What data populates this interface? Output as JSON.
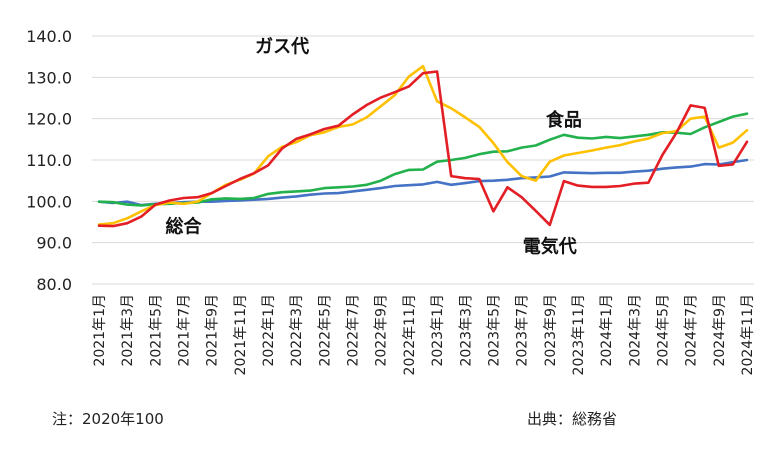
{
  "chart_data": {
    "type": "line",
    "title": "",
    "xlabel": "",
    "ylabel": "",
    "ylim": [
      80,
      140
    ],
    "yticks": [
      "140.0",
      "130.0",
      "120.0",
      "110.0",
      "100.0",
      "90.0",
      "80.0"
    ],
    "grid": "horizontal",
    "legend": "inline labels",
    "categories": [
      "2021年1月",
      "2021年2月",
      "2021年3月",
      "2021年4月",
      "2021年5月",
      "2021年6月",
      "2021年7月",
      "2021年8月",
      "2021年9月",
      "2021年10月",
      "2021年11月",
      "2021年12月",
      "2022年1月",
      "2022年2月",
      "2022年3月",
      "2022年4月",
      "2022年5月",
      "2022年6月",
      "2022年7月",
      "2022年8月",
      "2022年9月",
      "2022年10月",
      "2022年11月",
      "2022年12月",
      "2023年1月",
      "2023年2月",
      "2023年3月",
      "2023年4月",
      "2023年5月",
      "2023年6月",
      "2023年7月",
      "2023年8月",
      "2023年9月",
      "2023年10月",
      "2023年11月",
      "2023年12月",
      "2024年1月",
      "2024年2月",
      "2024年3月",
      "2024年4月",
      "2024年5月",
      "2024年6月",
      "2024年7月",
      "2024年8月",
      "2024年9月",
      "2024年10月",
      "2024年11月"
    ],
    "tick_labels": [
      "2021年1月",
      "2021年3月",
      "2021年5月",
      "2021年7月",
      "2021年9月",
      "2021年11月",
      "2022年1月",
      "2022年3月",
      "2022年5月",
      "2022年7月",
      "2022年9月",
      "2022年11月",
      "2023年1月",
      "2023年3月",
      "2023年5月",
      "2023年7月",
      "2023年9月",
      "2023年11月",
      "2024年1月",
      "2024年3月",
      "2024年5月",
      "2024年7月",
      "2024年9月",
      "2024年11月"
    ],
    "series": [
      {
        "name": "総合",
        "color": "#4472c4",
        "values": [
          99.9,
          99.6,
          99.9,
          99.1,
          99.4,
          99.6,
          99.8,
          99.9,
          99.9,
          100.1,
          100.2,
          100.4,
          100.6,
          100.9,
          101.2,
          101.6,
          101.9,
          102.0,
          102.4,
          102.8,
          103.2,
          103.7,
          103.9,
          104.1,
          104.7,
          104.0,
          104.4,
          104.9,
          105.0,
          105.2,
          105.6,
          105.8,
          106.0,
          107.0,
          106.9,
          106.8,
          106.9,
          106.9,
          107.2,
          107.4,
          107.9,
          108.2,
          108.4,
          109.0,
          108.9,
          109.5,
          110.0
        ]
      },
      {
        "name": "食品",
        "color": "#22b14c",
        "values": [
          99.9,
          99.8,
          99.2,
          99.0,
          99.3,
          99.4,
          99.6,
          99.7,
          100.5,
          100.7,
          100.6,
          100.8,
          101.8,
          102.2,
          102.4,
          102.6,
          103.2,
          103.4,
          103.6,
          104.0,
          105.0,
          106.6,
          107.6,
          107.7,
          109.6,
          110.0,
          110.5,
          111.4,
          112.0,
          112.1,
          113.0,
          113.5,
          114.9,
          116.1,
          115.4,
          115.2,
          115.6,
          115.3,
          115.7,
          116.1,
          116.7,
          116.6,
          116.3,
          117.9,
          119.2,
          120.5,
          121.2
        ]
      },
      {
        "name": "ガス代",
        "color": "#ffc000",
        "values": [
          94.4,
          94.7,
          95.9,
          97.6,
          99.1,
          99.7,
          99.4,
          99.9,
          102.0,
          104.0,
          105.2,
          106.7,
          110.9,
          113.2,
          114.3,
          116.0,
          116.7,
          118.0,
          118.6,
          120.3,
          123.0,
          125.7,
          130.2,
          132.7,
          124.2,
          122.5,
          120.3,
          118.0,
          114.1,
          109.5,
          106.1,
          105.0,
          109.6,
          111.1,
          111.7,
          112.3,
          113.0,
          113.6,
          114.5,
          115.2,
          116.5,
          117.0,
          120.0,
          120.5,
          113.0,
          114.2,
          117.2
        ]
      },
      {
        "name": "電気代",
        "color": "#e31e24",
        "values": [
          94.1,
          94.0,
          94.7,
          96.3,
          99.2,
          100.2,
          100.8,
          101.0,
          102.0,
          103.7,
          105.4,
          106.8,
          108.7,
          112.8,
          115.1,
          116.2,
          117.5,
          118.3,
          121.0,
          123.3,
          125.1,
          126.4,
          127.8,
          131.0,
          131.4,
          106.1,
          105.6,
          105.4,
          97.6,
          103.4,
          101.0,
          97.7,
          94.3,
          104.9,
          103.8,
          103.5,
          103.5,
          103.7,
          104.3,
          104.5,
          111.2,
          116.6,
          123.2,
          122.6,
          108.6,
          108.9,
          114.4
        ]
      }
    ],
    "annotations": [
      "ガス代",
      "食品",
      "総合",
      "電気代"
    ]
  },
  "notes": {
    "left": "注：2020年100",
    "right": "出典：総務省"
  }
}
